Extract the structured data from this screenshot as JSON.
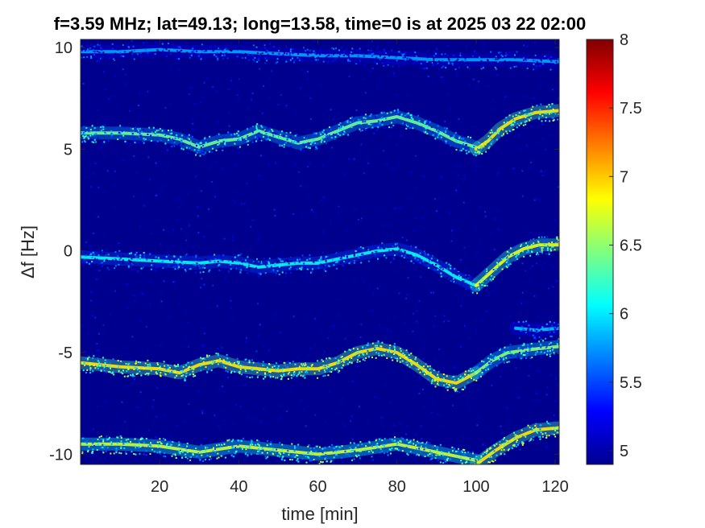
{
  "chart_data": {
    "type": "heatmap",
    "title": "f=3.59 MHz;  lat=49.13; long=13.58, time=0 is at 2025 03 22 02:00",
    "xlabel": "time [min]",
    "ylabel": "Δf [Hz]",
    "xlim": [
      0,
      121
    ],
    "ylim": [
      -10.5,
      10.4
    ],
    "x_ticks": [
      20,
      40,
      60,
      80,
      100,
      120
    ],
    "x_tick_labels": [
      "20",
      "40",
      "60",
      "80",
      "100",
      "120"
    ],
    "y_ticks": [
      10,
      5,
      0,
      -5,
      -10
    ],
    "y_tick_labels": [
      "10",
      "5",
      "0",
      "-5",
      "-10"
    ],
    "grid": false,
    "colormap": "jet",
    "background_color": "#00008f",
    "colorbar": {
      "range": [
        4.9,
        8
      ],
      "ticks": [
        5,
        5.5,
        6,
        6.5,
        7,
        7.5,
        8
      ],
      "tick_labels": [
        "5",
        "5.5",
        "6",
        "6.5",
        "7",
        "7.5",
        "8"
      ]
    },
    "traces": [
      {
        "x": [
          0,
          10,
          20,
          25,
          30,
          35,
          40,
          45,
          50,
          55,
          60,
          65,
          70,
          75,
          80,
          85,
          90,
          95,
          100
        ],
        "y": [
          5.8,
          5.8,
          5.7,
          5.5,
          5.1,
          5.4,
          5.5,
          5.9,
          5.6,
          5.3,
          5.5,
          5.9,
          6.3,
          6.4,
          6.6,
          6.3,
          5.9,
          5.4,
          5.1
        ],
        "intensity": 6.4
      },
      {
        "x": [
          100,
          103,
          106,
          110,
          115,
          121
        ],
        "y": [
          5.0,
          5.4,
          6.0,
          6.5,
          6.8,
          6.9
        ],
        "intensity": 6.9
      },
      {
        "x": [
          0,
          10,
          20,
          30,
          35,
          40,
          45,
          50,
          55,
          60,
          65,
          70,
          75,
          80,
          85,
          90,
          95,
          100
        ],
        "y": [
          -0.3,
          -0.4,
          -0.5,
          -0.6,
          -0.5,
          -0.6,
          -0.8,
          -0.7,
          -0.6,
          -0.6,
          -0.4,
          -0.2,
          0.0,
          0.1,
          -0.2,
          -0.7,
          -1.3,
          -1.7
        ],
        "intensity": 6.1
      },
      {
        "x": [
          100,
          104,
          108,
          112,
          116,
          121
        ],
        "y": [
          -1.7,
          -1.0,
          -0.3,
          0.1,
          0.3,
          0.3
        ],
        "intensity": 6.8
      },
      {
        "x": [
          0,
          10,
          20,
          25,
          30,
          35,
          40,
          45,
          50,
          55,
          60,
          65,
          70,
          75,
          80,
          85,
          90,
          95,
          100
        ],
        "y": [
          -5.5,
          -5.7,
          -5.8,
          -6.0,
          -5.6,
          -5.4,
          -5.7,
          -5.8,
          -5.9,
          -5.8,
          -5.8,
          -5.5,
          -5.0,
          -4.8,
          -5.0,
          -5.6,
          -6.3,
          -6.5,
          -6.0
        ],
        "intensity": 6.9
      },
      {
        "x": [
          100,
          104,
          108,
          112,
          116,
          121
        ],
        "y": [
          -6.0,
          -5.4,
          -5.0,
          -4.9,
          -4.8,
          -4.7
        ],
        "intensity": 6.5
      },
      {
        "x": [
          110,
          115,
          121
        ],
        "y": [
          -3.8,
          -3.9,
          -3.8
        ],
        "intensity": 5.9
      },
      {
        "x": [
          0,
          10,
          20,
          30,
          40,
          50,
          60,
          70,
          80,
          90,
          100
        ],
        "y": [
          -9.5,
          -9.5,
          -9.6,
          -9.9,
          -9.6,
          -9.8,
          -10.0,
          -9.8,
          -9.5,
          -9.9,
          -10.3
        ],
        "intensity": 6.7
      },
      {
        "x": [
          100,
          105,
          110,
          115,
          121
        ],
        "y": [
          -10.5,
          -9.8,
          -9.2,
          -8.8,
          -8.7
        ],
        "intensity": 6.9
      },
      {
        "x": [
          0,
          10,
          20,
          30,
          40,
          50,
          60,
          70,
          80,
          90,
          100,
          110,
          121
        ],
        "y": [
          9.8,
          9.8,
          9.9,
          9.8,
          9.8,
          9.7,
          9.6,
          9.6,
          9.5,
          9.4,
          9.4,
          9.4,
          9.3
        ],
        "intensity": 5.8
      }
    ]
  }
}
